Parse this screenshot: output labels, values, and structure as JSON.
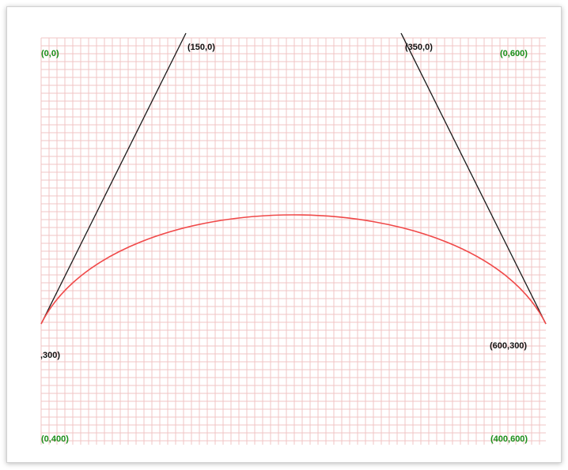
{
  "colors": {
    "grid": "#f0c4c4",
    "curve": "#f04848",
    "control_lines": "#1a1a1a",
    "corner_labels": "#1a8f1a",
    "point_labels": "#111111"
  },
  "corner_labels": {
    "top_left": "(0,0)",
    "top_right": "(0,600)",
    "bottom_left": "(0,400)",
    "bottom_right": "(400,600)"
  },
  "point_labels": {
    "start": ",300)",
    "control1": "(150,0)",
    "control2": "(350,0)",
    "end": "(600,300)"
  }
}
